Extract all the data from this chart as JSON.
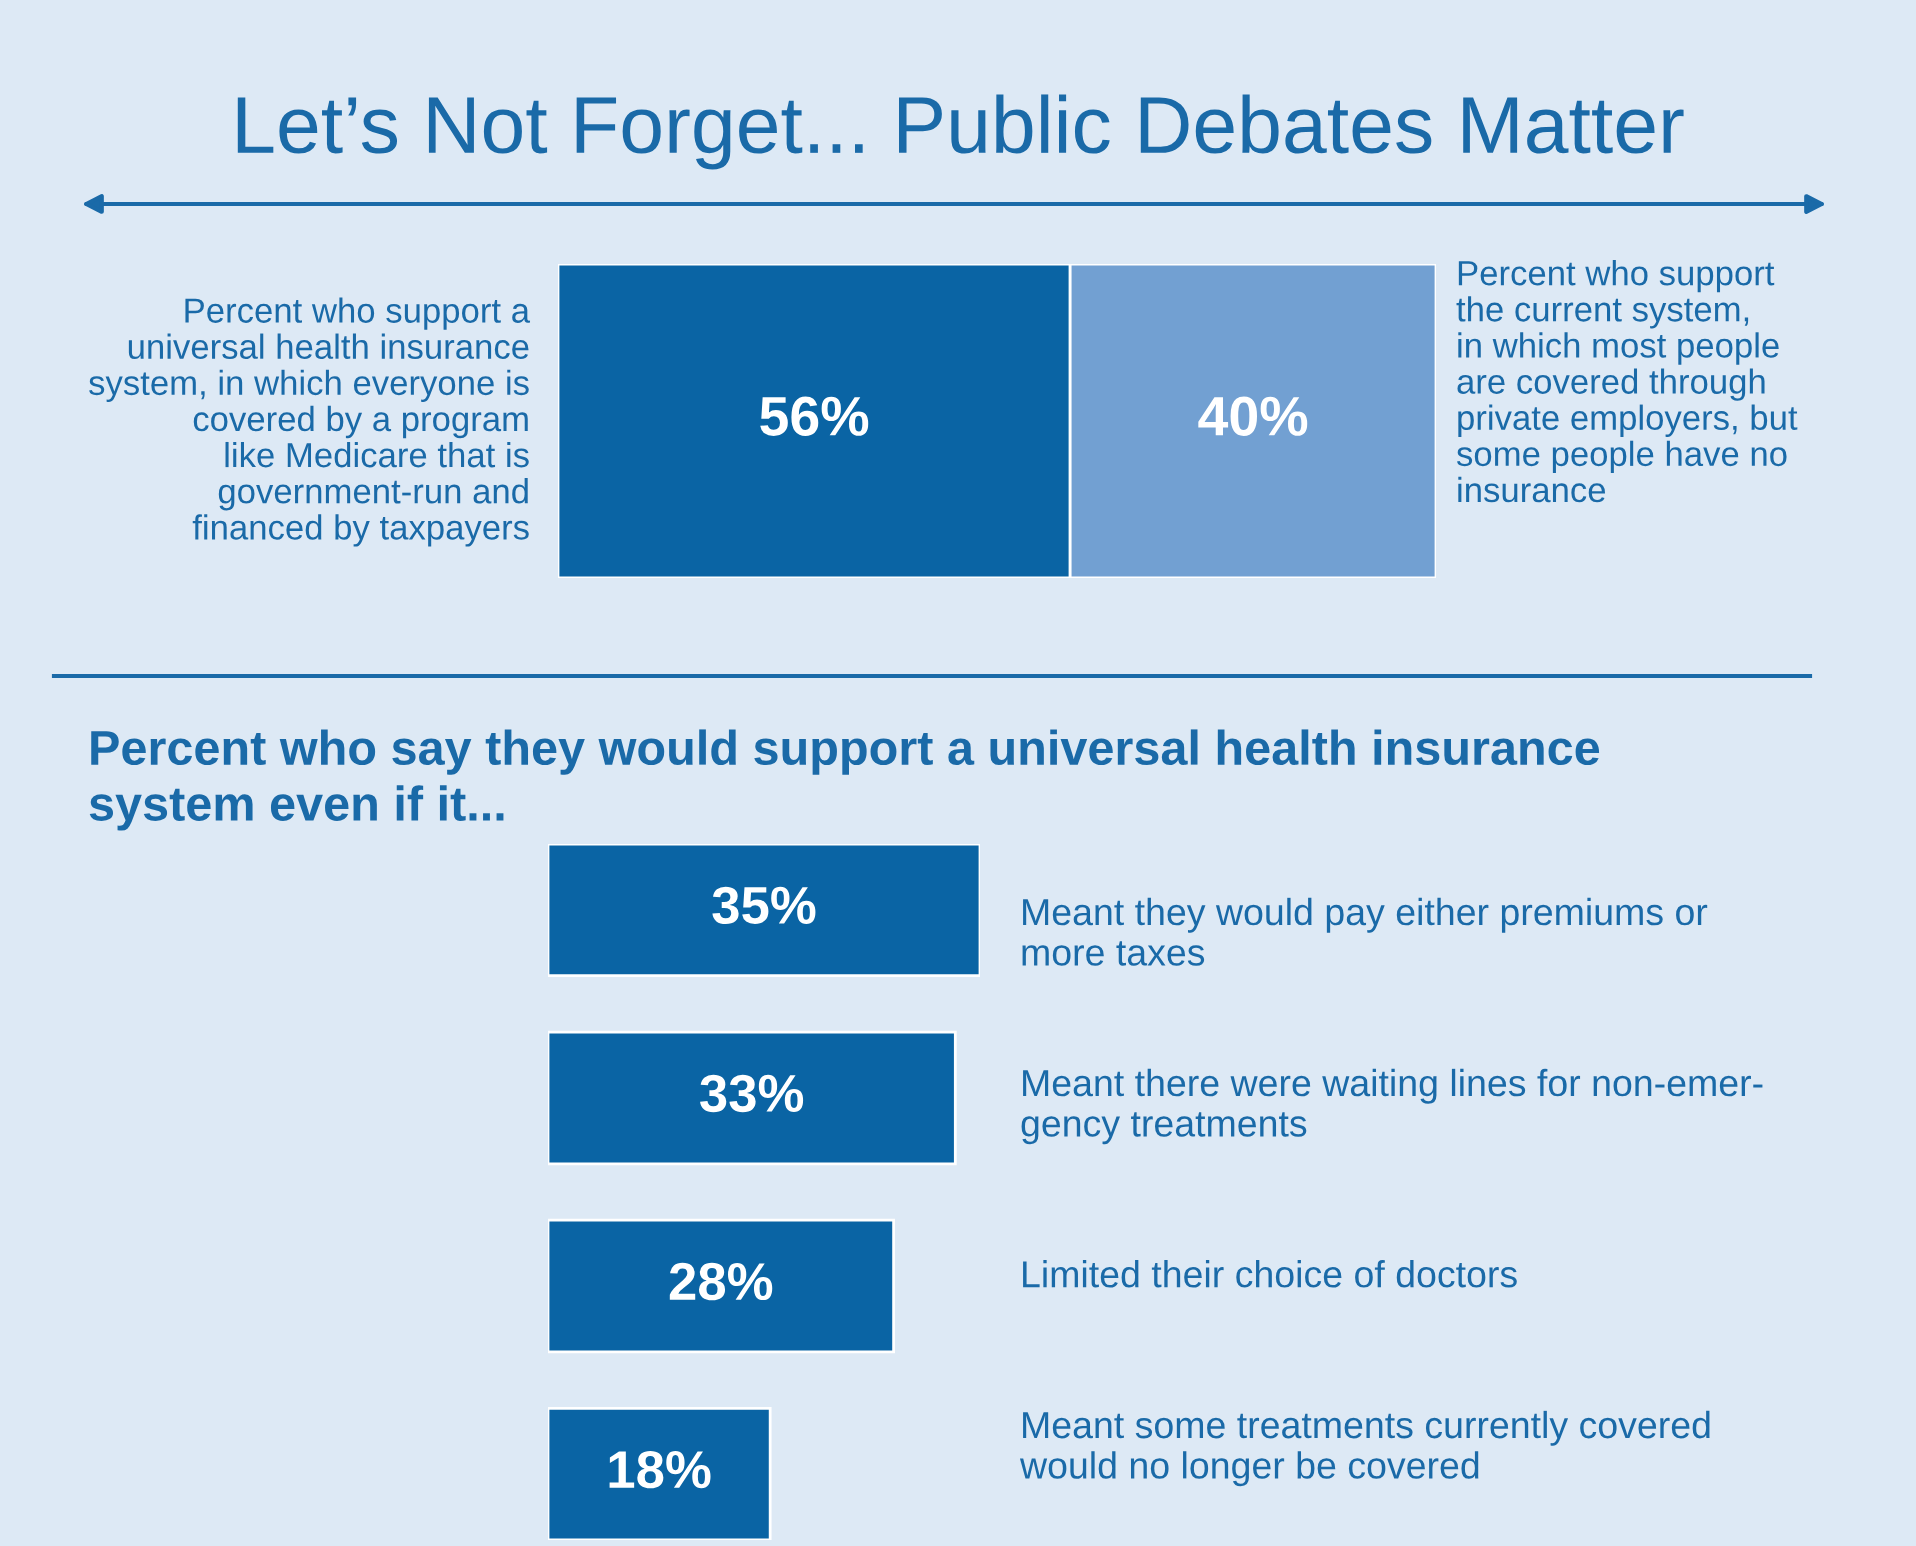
{
  "chart_data": [
    {
      "type": "bar",
      "orientation": "horizontal",
      "stacked": true,
      "title": "Let’s Not Forget... Public Debates Matter",
      "categories": [
        null
      ],
      "series": [
        {
          "color": "#0a64a4",
          "values": [
            56
          ],
          "value_labels": [
            "56%"
          ]
        },
        {
          "color": "#72a0d2",
          "values": [
            40
          ],
          "value_labels": [
            "40%"
          ]
        }
      ],
      "annotations": [
        "Percent who support a\nuniversal health insurance\nsystem, in which everyone is\ncovered by a program\nlike Medicare that is\ngovernment-run and\nfinanced by taxpayers",
        "Percent who support\nthe current system,\nin which most people\nare covered through\nprivate employers, but\nsome people have no\ninsurance"
      ],
      "tick_labels": false,
      "grid": false,
      "legend": false
    },
    {
      "type": "bar",
      "orientation": "horizontal",
      "title": "Percent who say they would support a universal health insurance\nsystem even if it...",
      "categories": [
        "Meant they would pay either premiums or\nmore taxes",
        "Meant there were waiting lines for non-emer-\ngency treatments",
        "Limited their choice of doctors",
        "Meant some treatments currently covered\nwould no longer be covered"
      ],
      "values": [
        35,
        33,
        28,
        18
      ],
      "value_labels": [
        "35%",
        "33%",
        "28%",
        "18%"
      ],
      "color": "#0a64a4",
      "tick_labels": false,
      "grid": false,
      "legend": false
    }
  ]
}
